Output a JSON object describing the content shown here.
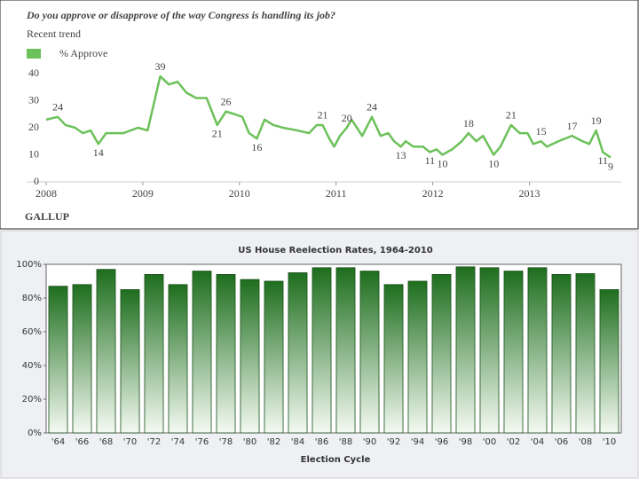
{
  "chart_data": [
    {
      "type": "line",
      "title": "Do you approve or disapprove of the way Congress is handling its job?",
      "subtitle": "Recent trend",
      "source": "GALLUP",
      "x": [
        2008.0,
        2008.12,
        2008.2,
        2008.3,
        2008.38,
        2008.46,
        2008.54,
        2008.62,
        2008.8,
        2008.95,
        2009.05,
        2009.18,
        2009.27,
        2009.36,
        2009.45,
        2009.55,
        2009.66,
        2009.77,
        2009.86,
        2009.95,
        2010.03,
        2010.1,
        2010.18,
        2010.26,
        2010.35,
        2010.45,
        2010.6,
        2010.72,
        2010.8,
        2010.86,
        2010.93,
        2010.98,
        2011.04,
        2011.11,
        2011.16,
        2011.27,
        2011.37,
        2011.46,
        2011.54,
        2011.6,
        2011.67,
        2011.72,
        2011.8,
        2011.9,
        2011.97,
        2012.04,
        2012.1,
        2012.2,
        2012.3,
        2012.37,
        2012.45,
        2012.52,
        2012.63,
        2012.7,
        2012.81,
        2012.9,
        2012.98,
        2013.04,
        2013.12,
        2013.18,
        2013.3,
        2013.44,
        2013.55,
        2013.62,
        2013.69,
        2013.76,
        2013.84
      ],
      "series": [
        {
          "name": "% Approve",
          "color": "#6cc15a",
          "values": [
            23,
            24,
            21,
            20,
            18,
            19,
            14,
            18,
            18,
            20,
            19,
            39,
            36,
            37,
            33,
            31,
            31,
            21,
            26,
            25,
            24,
            18,
            16,
            23,
            21,
            20,
            19,
            18,
            21,
            21,
            16,
            13,
            17,
            20,
            23,
            17,
            24,
            17,
            18,
            15,
            13,
            15,
            13,
            13,
            11,
            12,
            10,
            12,
            15,
            18,
            15,
            17,
            10,
            13,
            21,
            18,
            18,
            14,
            15,
            13,
            15,
            17,
            15,
            14,
            19,
            11,
            9
          ]
        }
      ],
      "annotations": [
        {
          "x": 2008.12,
          "value": 24
        },
        {
          "x": 2008.54,
          "value": 14
        },
        {
          "x": 2009.18,
          "value": 39
        },
        {
          "x": 2009.77,
          "value": 21
        },
        {
          "x": 2009.86,
          "value": 26
        },
        {
          "x": 2010.18,
          "value": 16
        },
        {
          "x": 2010.86,
          "value": 21
        },
        {
          "x": 2011.11,
          "value": 20
        },
        {
          "x": 2011.37,
          "value": 24
        },
        {
          "x": 2011.67,
          "value": 13
        },
        {
          "x": 2011.97,
          "value": 11
        },
        {
          "x": 2012.1,
          "value": 10
        },
        {
          "x": 2012.37,
          "value": 18
        },
        {
          "x": 2012.63,
          "value": 10
        },
        {
          "x": 2012.81,
          "value": 21
        },
        {
          "x": 2013.12,
          "value": 15
        },
        {
          "x": 2013.44,
          "value": 17
        },
        {
          "x": 2013.69,
          "value": 19
        },
        {
          "x": 2013.76,
          "value": 11
        },
        {
          "x": 2013.84,
          "value": 9
        }
      ],
      "xlim": [
        2008,
        2013.84
      ],
      "xticks": [
        2008,
        2009,
        2010,
        2011,
        2012,
        2013
      ],
      "ylim": [
        0,
        40
      ],
      "yticks": [
        0,
        10,
        20,
        30,
        40
      ],
      "grid": false,
      "legend": "top-left"
    },
    {
      "type": "bar",
      "title": "US House Reelection Rates, 1964-2010",
      "xlabel": "Election Cycle",
      "categories": [
        "'64",
        "'66",
        "'68",
        "'70",
        "'72",
        "'74",
        "'76",
        "'78",
        "'80",
        "'82",
        "'84",
        "'86",
        "'88",
        "'90",
        "'92",
        "'94",
        "'96",
        "'98",
        "'00",
        "'02",
        "'04",
        "'06",
        "'08",
        "'10"
      ],
      "values": [
        87,
        88,
        97,
        85,
        94,
        88,
        96,
        94,
        91,
        90,
        95,
        98,
        98,
        96,
        88,
        90,
        94,
        98.5,
        98,
        96,
        98,
        94,
        94.5,
        85
      ],
      "color": "#1e6e1e",
      "ylim": [
        0,
        100
      ],
      "yticks": [
        {
          "value": 0,
          "label": "0%"
        },
        {
          "value": 20,
          "label": "20%"
        },
        {
          "value": 40,
          "label": "40%"
        },
        {
          "value": 60,
          "label": "60%"
        },
        {
          "value": 80,
          "label": "80%"
        },
        {
          "value": 100,
          "label": "100%"
        }
      ],
      "grid": false
    }
  ]
}
